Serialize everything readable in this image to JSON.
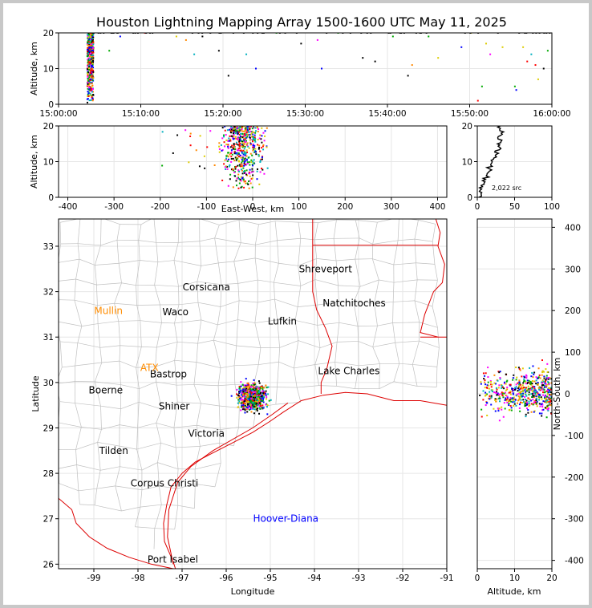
{
  "title": "Houston Lightning Mapping Array 1500-1600 UTC May 11, 2025",
  "colors": {
    "frame": "#c8c8c8",
    "state_border": "#dd0000",
    "county_border": "#c0c0c0",
    "grid": "#e6e6e6",
    "city_label": "#000000",
    "site_label_orange": "#ff8c00",
    "site_label_blue": "#0000ff",
    "point_palette": [
      "#0000ff",
      "#00aa00",
      "#ff00ff",
      "#000000",
      "#00b0c0",
      "#ff8800",
      "#ddcc00",
      "#ff0000"
    ]
  },
  "chart_data": [
    {
      "type": "scatter",
      "panel": "time-altitude",
      "ylabel": "Altitude, km",
      "ylim": [
        0,
        20
      ],
      "yticks": [
        "0",
        "10",
        "20"
      ],
      "xlim": [
        "15:00:00",
        "16:00:00"
      ],
      "xticks": [
        "15:00:00",
        "15:10:00",
        "15:20:00",
        "15:30:00",
        "15:40:00",
        "15:50:00",
        "16:00:00"
      ],
      "dense_band": {
        "from": "15:03:30",
        "to": "15:04:15",
        "altitude_range": [
          0,
          20
        ]
      },
      "sparse_points": [
        {
          "t": "15:06:10",
          "z": 15
        },
        {
          "t": "15:07:30",
          "z": 19
        },
        {
          "t": "15:10:30",
          "z": 20
        },
        {
          "t": "15:14:20",
          "z": 19
        },
        {
          "t": "15:15:30",
          "z": 18
        },
        {
          "t": "15:16:30",
          "z": 14
        },
        {
          "t": "15:17:30",
          "z": 19
        },
        {
          "t": "15:19:30",
          "z": 15
        },
        {
          "t": "15:20:40",
          "z": 8
        },
        {
          "t": "15:22:50",
          "z": 14
        },
        {
          "t": "15:24:00",
          "z": 10
        },
        {
          "t": "15:26:30",
          "z": 20
        },
        {
          "t": "15:29:30",
          "z": 17
        },
        {
          "t": "15:31:30",
          "z": 18
        },
        {
          "t": "15:32:00",
          "z": 10
        },
        {
          "t": "15:34:00",
          "z": 20
        },
        {
          "t": "15:37:00",
          "z": 13
        },
        {
          "t": "15:38:30",
          "z": 12
        },
        {
          "t": "15:40:40",
          "z": 19
        },
        {
          "t": "15:42:30",
          "z": 8
        },
        {
          "t": "15:43:00",
          "z": 11
        },
        {
          "t": "15:45:00",
          "z": 19
        },
        {
          "t": "15:46:10",
          "z": 13
        },
        {
          "t": "15:49:00",
          "z": 16
        },
        {
          "t": "15:50:10",
          "z": 20
        },
        {
          "t": "15:51:00",
          "z": 1
        },
        {
          "t": "15:51:30",
          "z": 5
        },
        {
          "t": "15:52:00",
          "z": 17
        },
        {
          "t": "15:52:30",
          "z": 14
        },
        {
          "t": "15:54:00",
          "z": 16
        },
        {
          "t": "15:55:30",
          "z": 5
        },
        {
          "t": "15:55:40",
          "z": 4
        },
        {
          "t": "15:56:30",
          "z": 16
        },
        {
          "t": "15:57:00",
          "z": 12
        },
        {
          "t": "15:57:30",
          "z": 14
        },
        {
          "t": "15:58:00",
          "z": 11
        },
        {
          "t": "15:58:20",
          "z": 7
        },
        {
          "t": "15:59:00",
          "z": 10
        },
        {
          "t": "15:59:30",
          "z": 15
        }
      ]
    },
    {
      "type": "scatter",
      "panel": "east-west-altitude",
      "xlabel": "East-West, km",
      "ylabel": "Altitude, km",
      "xlim": [
        -420,
        420
      ],
      "ylim": [
        0,
        20
      ],
      "xticks": [
        "-400",
        "-300",
        "-200",
        "-100",
        "0",
        "100",
        "200",
        "300",
        "400"
      ],
      "yticks": [
        "0",
        "10",
        "20"
      ],
      "cluster": {
        "x_range": [
          -100,
          55
        ],
        "z_range": [
          2,
          20
        ]
      }
    },
    {
      "type": "line",
      "panel": "altitude-histogram",
      "xlim": [
        0,
        100
      ],
      "ylim": [
        0,
        20
      ],
      "xticks": [
        "0",
        "50",
        "100"
      ],
      "yticks": [
        "0",
        "10",
        "20"
      ],
      "annotation": "2,022 src",
      "profile": [
        {
          "z": 0,
          "n": 2
        },
        {
          "z": 1,
          "n": 5
        },
        {
          "z": 2,
          "n": 4
        },
        {
          "z": 3,
          "n": 7
        },
        {
          "z": 4,
          "n": 9
        },
        {
          "z": 5,
          "n": 11
        },
        {
          "z": 6,
          "n": 12
        },
        {
          "z": 7,
          "n": 15
        },
        {
          "z": 8,
          "n": 16
        },
        {
          "z": 9,
          "n": 18
        },
        {
          "z": 10,
          "n": 20
        },
        {
          "z": 11,
          "n": 22
        },
        {
          "z": 12,
          "n": 25
        },
        {
          "z": 13,
          "n": 24
        },
        {
          "z": 14,
          "n": 30
        },
        {
          "z": 15,
          "n": 27
        },
        {
          "z": 16,
          "n": 33
        },
        {
          "z": 17,
          "n": 28
        },
        {
          "z": 18,
          "n": 32
        },
        {
          "z": 19,
          "n": 30
        },
        {
          "z": 20,
          "n": 31
        }
      ]
    },
    {
      "type": "scatter",
      "panel": "map",
      "xlabel": "Longitude",
      "ylabel": "Latitude",
      "xlim": [
        -99.8,
        -91.0
      ],
      "ylim": [
        25.9,
        33.6
      ],
      "xticks": [
        "-99",
        "-98",
        "-97",
        "-96",
        "-95",
        "-94",
        "-93",
        "-92",
        "-91"
      ],
      "yticks": [
        "26",
        "27",
        "28",
        "29",
        "30",
        "31",
        "32",
        "33"
      ],
      "cluster": {
        "lon_range": [
          -95.9,
          -94.9
        ],
        "lat_range": [
          29.2,
          30.15
        ]
      },
      "cities": [
        {
          "name": "Shreveport",
          "lon": -93.75,
          "lat": 32.5
        },
        {
          "name": "Corsicana",
          "lon": -96.45,
          "lat": 32.1
        },
        {
          "name": "Natchitoches",
          "lon": -93.1,
          "lat": 31.75
        },
        {
          "name": "Waco",
          "lon": -97.15,
          "lat": 31.55
        },
        {
          "name": "Lufkin",
          "lon": -94.73,
          "lat": 31.35
        },
        {
          "name": "Lake Charles",
          "lon": -93.22,
          "lat": 30.25
        },
        {
          "name": "Bastrop",
          "lon": -97.31,
          "lat": 30.18
        },
        {
          "name": "Boerne",
          "lon": -98.73,
          "lat": 29.83
        },
        {
          "name": "Shiner",
          "lon": -97.18,
          "lat": 29.48
        },
        {
          "name": "Victoria",
          "lon": -96.45,
          "lat": 28.88
        },
        {
          "name": "Tilden",
          "lon": -98.55,
          "lat": 28.5
        },
        {
          "name": "Corpus Christi",
          "lon": -97.4,
          "lat": 27.78
        },
        {
          "name": "Port Isabel",
          "lon": -97.21,
          "lat": 26.1
        }
      ],
      "sites": [
        {
          "name": "Mullin",
          "lon": -98.67,
          "lat": 31.58,
          "color": "#ff8c00"
        },
        {
          "name": "ATX",
          "lon": -97.74,
          "lat": 30.32,
          "color": "#ff8c00"
        },
        {
          "name": "Hoover-Diana",
          "lon": -94.65,
          "lat": 27.0,
          "color": "#0000ff"
        }
      ]
    },
    {
      "type": "scatter",
      "panel": "altitude-north-south",
      "xlabel": "Altitude, km",
      "ylabel": "North-South, km",
      "xlim": [
        0,
        20
      ],
      "ylim": [
        -420,
        420
      ],
      "xticks": [
        "0",
        "10",
        "20"
      ],
      "yticks": [
        "-400",
        "-300",
        "-200",
        "-100",
        "0",
        "100",
        "200",
        "300",
        "400"
      ],
      "cluster": {
        "z_range": [
          0,
          20
        ],
        "y_range": [
          -100,
          110
        ]
      }
    }
  ]
}
